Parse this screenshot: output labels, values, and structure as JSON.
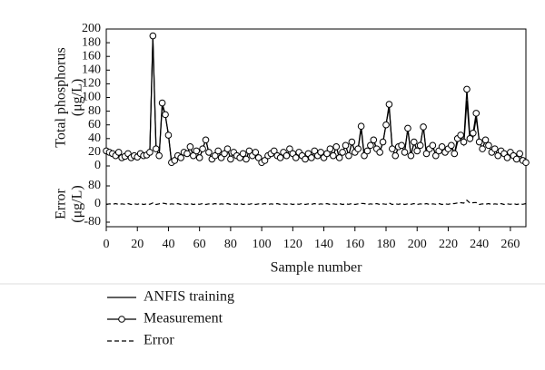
{
  "chart_data": [
    {
      "type": "line",
      "ylabel": [
        "Total phosphorus",
        "(μg/L)"
      ],
      "x": [
        0,
        2,
        4,
        6,
        8,
        10,
        12,
        14,
        16,
        18,
        20,
        22,
        24,
        26,
        28,
        30,
        32,
        34,
        36,
        38,
        40,
        42,
        44,
        46,
        48,
        50,
        52,
        54,
        56,
        58,
        60,
        62,
        64,
        66,
        68,
        70,
        72,
        74,
        76,
        78,
        80,
        82,
        84,
        86,
        88,
        90,
        92,
        94,
        96,
        98,
        100,
        102,
        104,
        106,
        108,
        110,
        112,
        114,
        116,
        118,
        120,
        122,
        124,
        126,
        128,
        130,
        132,
        134,
        136,
        138,
        140,
        142,
        144,
        146,
        148,
        150,
        152,
        154,
        156,
        158,
        160,
        162,
        164,
        166,
        168,
        170,
        172,
        174,
        176,
        178,
        180,
        182,
        184,
        186,
        188,
        190,
        192,
        194,
        196,
        198,
        200,
        202,
        204,
        206,
        208,
        210,
        212,
        214,
        216,
        218,
        220,
        222,
        224,
        226,
        228,
        230,
        232,
        234,
        236,
        238,
        240,
        242,
        244,
        246,
        248,
        250,
        252,
        254,
        256,
        258,
        260,
        262,
        264,
        266,
        268,
        270
      ],
      "xlim": [
        0,
        270
      ],
      "ylim": [
        0,
        200
      ],
      "yticks": [
        0,
        20,
        40,
        60,
        80,
        100,
        120,
        140,
        160,
        180,
        200
      ],
      "series": [
        {
          "name": "ANFIS training",
          "color": "#000000",
          "line_style": "solid",
          "marker": "none",
          "values": [
            24,
            19,
            19,
            13,
            22,
            11,
            15,
            16,
            14,
            14,
            14,
            16,
            17,
            15,
            21,
            185,
            27,
            14,
            88,
            73,
            47,
            4,
            9,
            13,
            14,
            19,
            19,
            26,
            17,
            21,
            13,
            23,
            40,
            19,
            11,
            13,
            24,
            11,
            19,
            23,
            12,
            19,
            16,
            10,
            20,
            9,
            23,
            13,
            22,
            11,
            6,
            6,
            17,
            17,
            23,
            13,
            14,
            19,
            16,
            23,
            20,
            11,
            21,
            13,
            12,
            17,
            13,
            20,
            17,
            19,
            13,
            16,
            27,
            14,
            29,
            10,
            22,
            29,
            16,
            33,
            22,
            24,
            55,
            13,
            24,
            29,
            39,
            23,
            22,
            34,
            61,
            85,
            27,
            14,
            29,
            28,
            22,
            54,
            16,
            33,
            24,
            29,
            58,
            16,
            27,
            29,
            16,
            20,
            30,
            19,
            26,
            28,
            16,
            35,
            39,
            31,
            95,
            36,
            42,
            70,
            37,
            24,
            39,
            28,
            22,
            24,
            16,
            20,
            20,
            11,
            21,
            13,
            12,
            17,
            9,
            3
          ]
        },
        {
          "name": "Measurement",
          "color": "#000000",
          "line_style": "solid",
          "marker": "circle",
          "values": [
            22,
            20,
            18,
            15,
            20,
            12,
            14,
            18,
            12,
            15,
            13,
            18,
            15,
            16,
            20,
            190,
            25,
            15,
            92,
            75,
            45,
            5,
            8,
            15,
            12,
            20,
            18,
            28,
            15,
            22,
            12,
            25,
            38,
            20,
            10,
            15,
            22,
            12,
            18,
            25,
            10,
            20,
            15,
            12,
            18,
            10,
            22,
            15,
            20,
            12,
            5,
            8,
            15,
            18,
            22,
            15,
            12,
            20,
            15,
            25,
            18,
            12,
            20,
            15,
            10,
            18,
            12,
            22,
            15,
            20,
            12,
            18,
            25,
            15,
            28,
            12,
            20,
            30,
            15,
            35,
            20,
            25,
            58,
            15,
            22,
            30,
            38,
            25,
            20,
            35,
            60,
            90,
            25,
            15,
            28,
            30,
            20,
            55,
            15,
            35,
            22,
            30,
            57,
            18,
            25,
            30,
            15,
            22,
            28,
            20,
            25,
            30,
            18,
            40,
            45,
            35,
            112,
            40,
            48,
            77,
            35,
            25,
            38,
            30,
            20,
            25,
            15,
            22,
            18,
            12,
            20,
            15,
            10,
            18,
            8,
            5
          ]
        }
      ]
    },
    {
      "type": "line",
      "ylabel": [
        "Error",
        "(μg/L)"
      ],
      "xlabel": "Sample number",
      "x": [
        0,
        2,
        4,
        6,
        8,
        10,
        12,
        14,
        16,
        18,
        20,
        22,
        24,
        26,
        28,
        30,
        32,
        34,
        36,
        38,
        40,
        42,
        44,
        46,
        48,
        50,
        52,
        54,
        56,
        58,
        60,
        62,
        64,
        66,
        68,
        70,
        72,
        74,
        76,
        78,
        80,
        82,
        84,
        86,
        88,
        90,
        92,
        94,
        96,
        98,
        100,
        102,
        104,
        106,
        108,
        110,
        112,
        114,
        116,
        118,
        120,
        122,
        124,
        126,
        128,
        130,
        132,
        134,
        136,
        138,
        140,
        142,
        144,
        146,
        148,
        150,
        152,
        154,
        156,
        158,
        160,
        162,
        164,
        166,
        168,
        170,
        172,
        174,
        176,
        178,
        180,
        182,
        184,
        186,
        188,
        190,
        192,
        194,
        196,
        198,
        200,
        202,
        204,
        206,
        208,
        210,
        212,
        214,
        216,
        218,
        220,
        222,
        224,
        226,
        228,
        230,
        232,
        234,
        236,
        238,
        240,
        242,
        244,
        246,
        248,
        250,
        252,
        254,
        256,
        258,
        260,
        262,
        264,
        266,
        268,
        270
      ],
      "xlim": [
        0,
        270
      ],
      "xticks": [
        0,
        20,
        40,
        60,
        80,
        100,
        120,
        140,
        160,
        180,
        200,
        220,
        240,
        260
      ],
      "ylim": [
        -80,
        80
      ],
      "yticks": [
        -80,
        0,
        80
      ],
      "series": [
        {
          "name": "Error",
          "color": "#000000",
          "line_style": "dashed",
          "marker": "none",
          "values": [
            -2,
            1,
            -1,
            2,
            -2,
            1,
            -1,
            2,
            -2,
            1,
            -1,
            2,
            -2,
            1,
            -1,
            5,
            -2,
            1,
            4,
            2,
            -2,
            1,
            -1,
            2,
            -2,
            1,
            -1,
            2,
            -2,
            1,
            -1,
            2,
            -2,
            1,
            -1,
            2,
            -2,
            1,
            -1,
            2,
            -2,
            1,
            -1,
            2,
            -2,
            1,
            -1,
            2,
            -2,
            1,
            -1,
            2,
            -2,
            1,
            -1,
            2,
            -2,
            1,
            -1,
            2,
            -2,
            1,
            -1,
            2,
            -2,
            1,
            -1,
            2,
            -2,
            1,
            -1,
            2,
            -2,
            1,
            -1,
            2,
            -2,
            1,
            -1,
            2,
            -2,
            1,
            3,
            2,
            -2,
            1,
            -1,
            2,
            -2,
            1,
            -1,
            5,
            -2,
            1,
            -1,
            2,
            -2,
            1,
            -1,
            2,
            -2,
            1,
            -1,
            2,
            -2,
            1,
            -1,
            2,
            -2,
            1,
            -1,
            2,
            2,
            5,
            6,
            4,
            17,
            4,
            6,
            7,
            -2,
            1,
            -1,
            2,
            -2,
            1,
            -1,
            2,
            -2,
            1,
            -1,
            2,
            -2,
            1,
            -1,
            2
          ]
        }
      ]
    }
  ]
}
